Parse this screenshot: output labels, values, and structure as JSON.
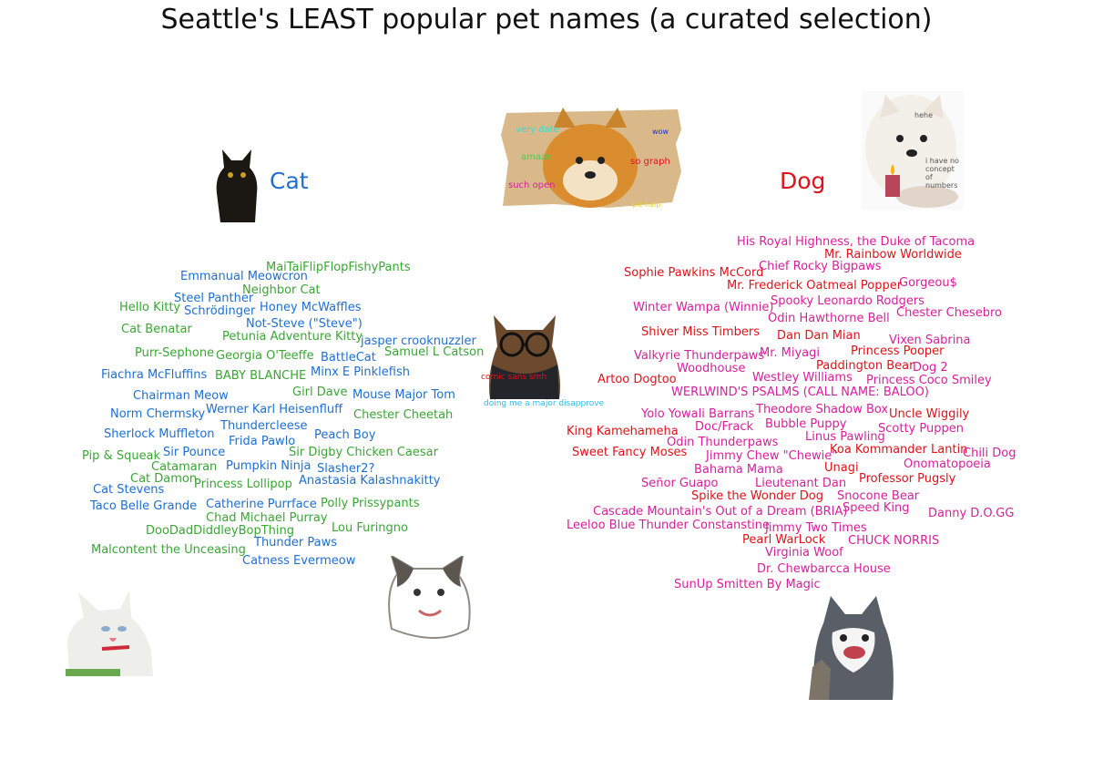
{
  "title": "Seattle's LEAST popular pet names (a curated selection)",
  "headers": {
    "cat": "Cat",
    "dog": "Dog"
  },
  "colors": {
    "cat_blue": "#1f6fd1",
    "cat_green": "#3aa635",
    "dog_red": "#e0121a",
    "dog_pink": "#d81f9c"
  },
  "doge_meme": {
    "t1": "very date",
    "t2": "wow",
    "t3": "amaze",
    "t4": "so graph",
    "t5": "such open",
    "t6": "plz halp"
  },
  "samoyed_meme": {
    "t1": "hehe",
    "t2": "i have no concept of numbers"
  },
  "center_dog_meme": {
    "t1": "comic sans smh",
    "t2": "doing me a major disapprove"
  },
  "cat_names": [
    "MaiTaiFlipFlopFishyPants",
    "Emmanual Meowcron",
    "Neighbor Cat",
    "Steel Panther",
    "Hello Kitty",
    "Schrödinger",
    "Honey McWaffles",
    "Not-Steve (\"Steve\")",
    "Cat Benatar",
    "Petunia Adventure Kitty",
    "jasper crooknuzzler",
    "Purr-Sephone",
    "Georgia O'Teeffe",
    "BattleCat",
    "Samuel L Catson",
    "Fiachra McFluffins",
    "BABY BLANCHE",
    "Minx E Pinklefish",
    "Girl Dave",
    "Chairman Meow",
    "Mouse Major Tom",
    "Werner Karl Heisenfluff",
    "Norm Chermsky",
    "Chester Cheetah",
    "Thundercleese",
    "Sherlock Muffleton",
    "Peach Boy",
    "Frida Pawlo",
    "Sir Pounce",
    "Sir Digby Chicken Caesar",
    "Pip & Squeak",
    "Catamaran",
    "Pumpkin Ninja",
    "Slasher2?",
    "Cat Damon",
    "Princess Lollipop",
    "Anastasia Kalashnakitty",
    "Cat Stevens",
    "Catherine Purrface",
    "Polly Prissypants",
    "Taco Belle Grande",
    "Chad Michael Purray",
    "DooDadDiddleyBopThing",
    "Lou Furingno",
    "Thunder Paws",
    "Malcontent the Unceasing",
    "Catness Evermeow"
  ],
  "dog_names": [
    "His Royal Highness, the Duke of Tacoma",
    "Mr. Rainbow Worldwide",
    "Sophie Pawkins McCord",
    "Chief Rocky Bigpaws",
    "Gorgeou$",
    "Mr. Frederick Oatmeal Popper",
    "Spooky Leonardo Rodgers",
    "Winter Wampa (Winnie)",
    "Chester Chesebro",
    "Odin Hawthorne Bell",
    "Shiver Miss Timbers",
    "Dan Dan Mian",
    "Vixen Sabrina",
    "Princess Pooper",
    "Mr. Miyagi",
    "Valkyrie Thunderpaws",
    "Paddington Bear",
    "Dog 2",
    "Woodhouse",
    "Westley Williams",
    "Artoo Dogtoo",
    "Princess Coco Smiley",
    "WERLWIND'S PSALMS (CALL NAME: BALOO)",
    "Theodore Shadow Box",
    "Uncle Wiggily",
    "Yolo Yowali Barrans",
    "Bubble Puppy",
    "Doc/Frack",
    "Scotty Puppen",
    "King Kamehameha",
    "Linus Pawling",
    "Odin Thunderpaws",
    "Koa Kommander Lantin",
    "Chili Dog",
    "Sweet Fancy Moses",
    "Jimmy Chew \"Chewie\"",
    "Onomatopoeia",
    "Bahama Mama",
    "Unagi",
    "Professor Pugsly",
    "Señor Guapo",
    "Lieutenant Dan",
    "Snocone Bear",
    "Spike the Wonder Dog",
    "Speed King",
    "Cascade Mountain's Out of a Dream (BRIA)",
    "Danny D.O.GG",
    "Leeloo Blue Thunder Constanstine",
    "Jimmy Two Times",
    "Pearl WarLock",
    "CHUCK NORRIS",
    "Virginia Woof",
    "Dr. Chewbarcca House",
    "SunUp Smitten By Magic"
  ]
}
